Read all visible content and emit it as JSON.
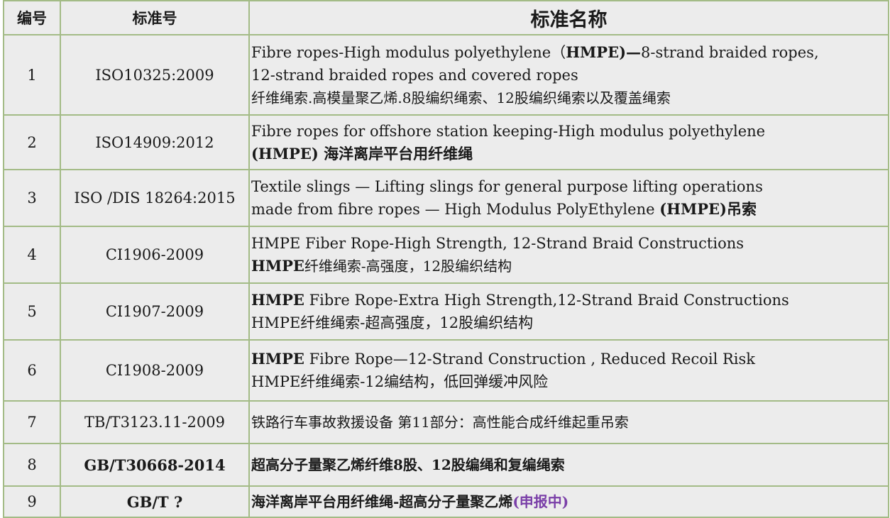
{
  "table": {
    "headers": [
      "编号",
      "标准号",
      "标准名称"
    ],
    "rows": [
      {
        "no": "1",
        "code": "ISO10325:2009",
        "code_bold": false,
        "h": 113,
        "lines": [
          [
            {
              "t": "Fibre ropes-High modulus polyethylene（"
            },
            {
              "t": "HMPE)—",
              "b": true
            },
            {
              "t": "8-strand braided ropes,"
            }
          ],
          [
            {
              "t": "12-strand braided ropes and covered ropes"
            }
          ],
          [
            {
              "t": " 纤维绳索.高模量聚乙烯.8股编织绳索、12股编织绳索以及覆盖绳索",
              "zh": true
            }
          ]
        ]
      },
      {
        "no": "2",
        "code": "ISO14909:2012",
        "code_bold": false,
        "h": 77,
        "lines": [
          [
            {
              "t": "Fibre ropes for offshore station keeping-High modulus polyethylene"
            }
          ],
          [
            {
              "t": "(HMPE) 海洋离岸平台用纤维绳",
              "b": true
            }
          ]
        ]
      },
      {
        "no": "3",
        "code": "ISO /DIS 18264:2015",
        "code_bold": false,
        "h": 80,
        "lines": [
          [
            {
              "t": "Textile slings — Lifting slings for general purpose lifting operations"
            }
          ],
          [
            {
              "t": "made from fibre ropes — High Modulus PolyEthylene "
            },
            {
              "t": "(HMPE)吊索",
              "b": true
            }
          ]
        ]
      },
      {
        "no": "4",
        "code": "CI1906-2009",
        "code_bold": false,
        "h": 80,
        "lines": [
          [
            {
              "t": " HMPE Fiber Rope-High Strength, 12-Strand Braid Constructions"
            }
          ],
          [
            {
              "t": " "
            },
            {
              "t": "HMPE",
              "b": true
            },
            {
              "t": "纤维绳索-高强度，12股编织结构",
              "zh": true
            }
          ]
        ]
      },
      {
        "no": "5",
        "code": "CI1907-2009",
        "code_bold": false,
        "h": 80,
        "lines": [
          [
            {
              "t": " "
            },
            {
              "t": "HMPE",
              "b": true
            },
            {
              "t": " Fibre Rope-Extra High Strength,12-Strand Braid Constructions"
            }
          ],
          [
            {
              "t": " HMPE纤维绳索-超高强度，12股编织结构"
            }
          ]
        ]
      },
      {
        "no": "6",
        "code": "CI1908-2009",
        "code_bold": false,
        "h": 86,
        "lines": [
          [
            {
              "t": " "
            },
            {
              "t": "HMPE",
              "b": true
            },
            {
              "t": " Fibre Rope—12-Strand Construction , Reduced Recoil Risk"
            }
          ],
          [
            {
              "t": " HMPE纤维绳索-12编结构，低回弹缓冲风险"
            }
          ]
        ]
      },
      {
        "no": "7",
        "code": "TB/T3123.11-2009",
        "code_bold": false,
        "h": 60,
        "lines": [
          [
            {
              "t": "  铁路行车事故救援设备 第11部分：高性能合成纤维起重吊索",
              "zh": true
            }
          ]
        ]
      },
      {
        "no": "8",
        "code": "GB/T30668-2014",
        "code_bold": true,
        "h": 60,
        "lines": [
          [
            {
              "t": " 超高分子量聚乙烯纤维8股、12股编绳和复编绳索",
              "b": true,
              "zh": true
            }
          ]
        ]
      },
      {
        "no": "9",
        "code": "GB/T ?",
        "code_bold": true,
        "h": 44,
        "lines": [
          [
            {
              "t": " 海洋离岸平台用纤维绳-超高分子量聚乙烯",
              "b": true,
              "zh": true
            },
            {
              "t": "(申报中)",
              "p": true,
              "zh": true
            }
          ]
        ]
      }
    ]
  },
  "colors": {
    "border": "#a3bb86",
    "background": "#ececec",
    "status": "#7a3fa8"
  }
}
